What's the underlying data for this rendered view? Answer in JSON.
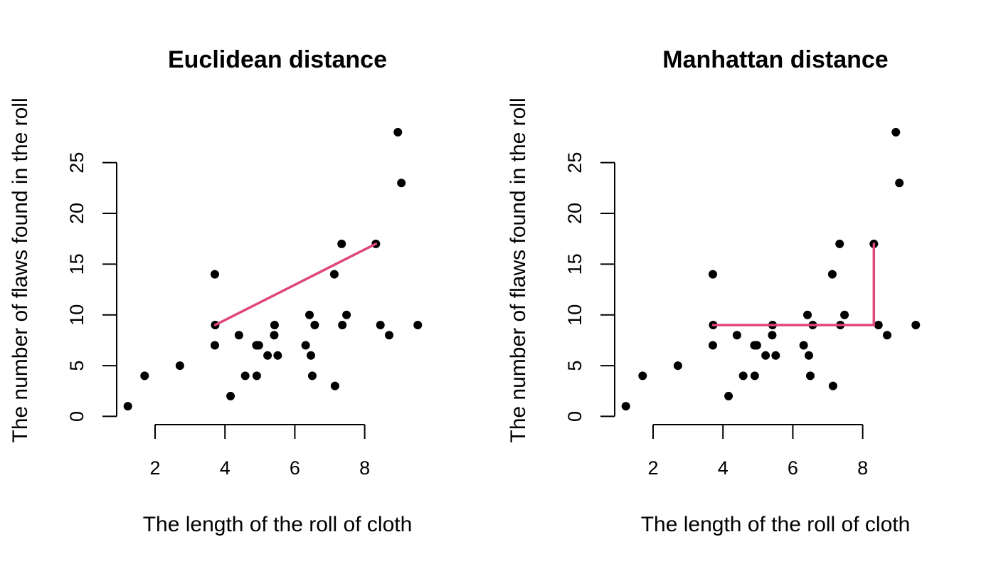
{
  "chart_data": [
    {
      "type": "scatter",
      "title": "Euclidean distance",
      "xlabel": "The length of the roll of cloth",
      "ylabel": "The number of flaws found in the roll",
      "xticks": [
        2,
        4,
        6,
        8
      ],
      "yticks": [
        0,
        5,
        10,
        15,
        20,
        25
      ],
      "xlim": [
        0.9,
        9.8
      ],
      "ylim": [
        -0.6,
        28.9
      ],
      "grid": false,
      "points": [
        {
          "x": 1.22,
          "y": 1
        },
        {
          "x": 1.7,
          "y": 4
        },
        {
          "x": 2.71,
          "y": 5
        },
        {
          "x": 3.71,
          "y": 14
        },
        {
          "x": 3.72,
          "y": 9
        },
        {
          "x": 3.71,
          "y": 7
        },
        {
          "x": 4.16,
          "y": 2
        },
        {
          "x": 4.4,
          "y": 8
        },
        {
          "x": 4.58,
          "y": 4
        },
        {
          "x": 4.9,
          "y": 7
        },
        {
          "x": 4.97,
          "y": 7
        },
        {
          "x": 4.91,
          "y": 4
        },
        {
          "x": 5.22,
          "y": 6
        },
        {
          "x": 5.42,
          "y": 9
        },
        {
          "x": 5.41,
          "y": 8
        },
        {
          "x": 5.51,
          "y": 6
        },
        {
          "x": 6.31,
          "y": 7
        },
        {
          "x": 6.42,
          "y": 10
        },
        {
          "x": 6.46,
          "y": 6
        },
        {
          "x": 6.5,
          "y": 4
        },
        {
          "x": 6.57,
          "y": 9
        },
        {
          "x": 7.13,
          "y": 14
        },
        {
          "x": 7.15,
          "y": 3
        },
        {
          "x": 7.34,
          "y": 17
        },
        {
          "x": 7.36,
          "y": 9
        },
        {
          "x": 7.48,
          "y": 10
        },
        {
          "x": 8.32,
          "y": 17
        },
        {
          "x": 8.45,
          "y": 9
        },
        {
          "x": 8.7,
          "y": 8
        },
        {
          "x": 8.95,
          "y": 28
        },
        {
          "x": 9.05,
          "y": 23
        },
        {
          "x": 9.52,
          "y": 9
        }
      ],
      "distance_path": [
        [
          3.72,
          9
        ],
        [
          8.32,
          17
        ]
      ],
      "distance_color": "#e0457b"
    },
    {
      "type": "scatter",
      "title": "Manhattan distance",
      "xlabel": "The length of the roll of cloth",
      "ylabel": "The number of flaws found in the roll",
      "xticks": [
        2,
        4,
        6,
        8
      ],
      "yticks": [
        0,
        5,
        10,
        15,
        20,
        25
      ],
      "xlim": [
        0.9,
        9.8
      ],
      "ylim": [
        -0.6,
        28.9
      ],
      "grid": false,
      "points": [
        {
          "x": 1.22,
          "y": 1
        },
        {
          "x": 1.7,
          "y": 4
        },
        {
          "x": 2.71,
          "y": 5
        },
        {
          "x": 3.71,
          "y": 14
        },
        {
          "x": 3.72,
          "y": 9
        },
        {
          "x": 3.71,
          "y": 7
        },
        {
          "x": 4.16,
          "y": 2
        },
        {
          "x": 4.4,
          "y": 8
        },
        {
          "x": 4.58,
          "y": 4
        },
        {
          "x": 4.9,
          "y": 7
        },
        {
          "x": 4.97,
          "y": 7
        },
        {
          "x": 4.91,
          "y": 4
        },
        {
          "x": 5.22,
          "y": 6
        },
        {
          "x": 5.42,
          "y": 9
        },
        {
          "x": 5.41,
          "y": 8
        },
        {
          "x": 5.51,
          "y": 6
        },
        {
          "x": 6.31,
          "y": 7
        },
        {
          "x": 6.42,
          "y": 10
        },
        {
          "x": 6.46,
          "y": 6
        },
        {
          "x": 6.5,
          "y": 4
        },
        {
          "x": 6.57,
          "y": 9
        },
        {
          "x": 7.13,
          "y": 14
        },
        {
          "x": 7.15,
          "y": 3
        },
        {
          "x": 7.34,
          "y": 17
        },
        {
          "x": 7.36,
          "y": 9
        },
        {
          "x": 7.48,
          "y": 10
        },
        {
          "x": 8.32,
          "y": 17
        },
        {
          "x": 8.45,
          "y": 9
        },
        {
          "x": 8.7,
          "y": 8
        },
        {
          "x": 8.95,
          "y": 28
        },
        {
          "x": 9.05,
          "y": 23
        },
        {
          "x": 9.52,
          "y": 9
        }
      ],
      "distance_path": [
        [
          3.72,
          9
        ],
        [
          8.32,
          9
        ],
        [
          8.32,
          17
        ]
      ],
      "distance_color": "#e0457b"
    }
  ]
}
